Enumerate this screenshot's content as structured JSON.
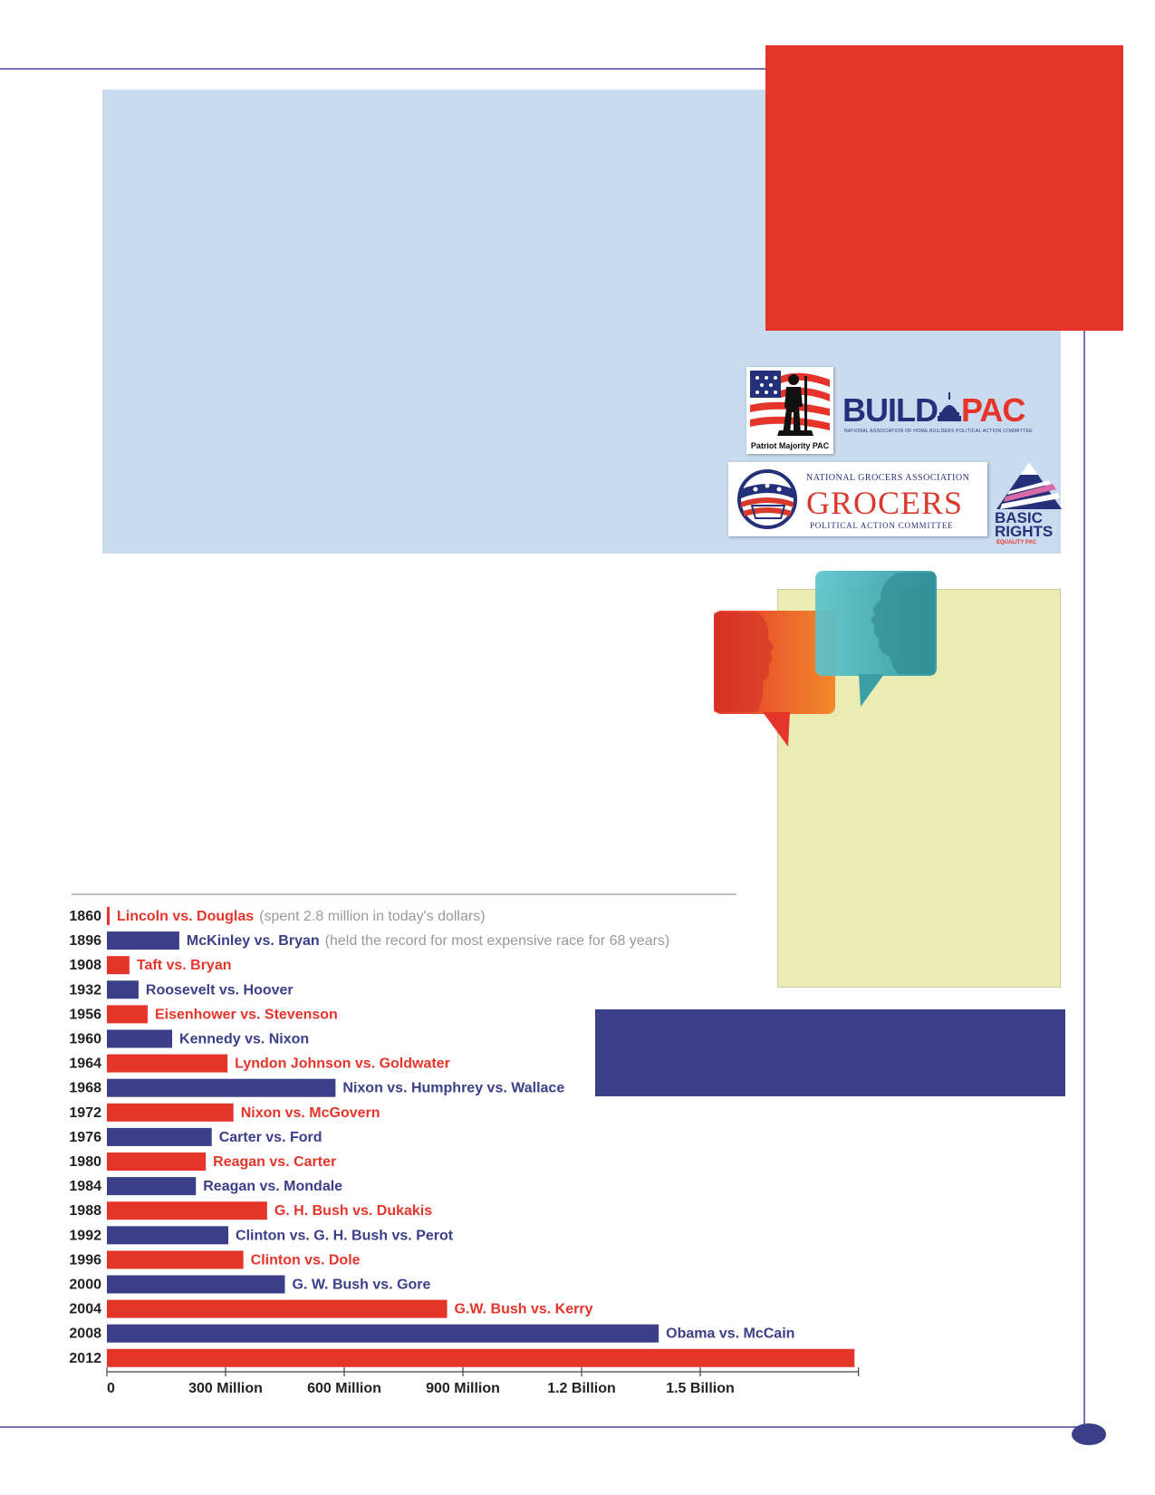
{
  "logos": {
    "patriot_majority": "Patriot Majority PAC",
    "build_pac": {
      "build": "BUILD",
      "pac": "PAC",
      "subtitle": "NATIONAL ASSOCIATION OF HOME BUILDERS POLITICAL ACTION COMMITTEE"
    },
    "grocers": {
      "top": "NATIONAL GROCERS ASSOCIATION",
      "main": "GROCERS",
      "bottom": "POLITICAL ACTION COMMITTEE"
    },
    "basic_rights": {
      "line1": "BASIC",
      "line2": "RIGHTS",
      "line3": "EQUALITY PAC"
    }
  },
  "colors": {
    "red": "#e5352b",
    "navy": "#3a3f88",
    "light_blue": "#c9dbee",
    "pale_yellow": "#ebebb4",
    "frame": "#7a70b8",
    "teal": "#3aaeb8",
    "orange": "#f07a2a",
    "note_gray": "#999999"
  },
  "chart_data": {
    "type": "bar",
    "orientation": "horizontal",
    "x_unit": "US dollars",
    "xlim": [
      0,
      1900000000
    ],
    "x_ticks": [
      {
        "value": 0,
        "label": "0"
      },
      {
        "value": 300000000,
        "label": "300 Million"
      },
      {
        "value": 600000000,
        "label": "600 Million"
      },
      {
        "value": 900000000,
        "label": "900 Million"
      },
      {
        "value": 1200000000,
        "label": "1.2 Billion"
      },
      {
        "value": 1500000000,
        "label": "1.5 Billion"
      }
    ],
    "categories": [
      "1860",
      "1896",
      "1908",
      "1932",
      "1956",
      "1960",
      "1964",
      "1968",
      "1972",
      "1976",
      "1980",
      "1984",
      "1988",
      "1992",
      "1996",
      "2000",
      "2004",
      "2008",
      "2012"
    ],
    "values": [
      2800000,
      183000000,
      57000000,
      80000000,
      103000000,
      165000000,
      305000000,
      578000000,
      320000000,
      265000000,
      250000000,
      225000000,
      405000000,
      307000000,
      345000000,
      450000000,
      860000000,
      1395000000,
      1890000000
    ],
    "race_labels": [
      "Lincoln vs. Douglas",
      "McKinley vs. Bryan",
      "Taft vs. Bryan",
      "Roosevelt vs. Hoover",
      "Eisenhower vs. Stevenson",
      "Kennedy vs. Nixon",
      "Lyndon Johnson vs. Goldwater",
      "Nixon vs. Humphrey vs. Wallace",
      "Nixon vs. McGovern",
      "Carter vs. Ford",
      "Reagan vs. Carter",
      "Reagan vs. Mondale",
      "G. H. Bush vs. Dukakis",
      "Clinton vs. G. H. Bush vs. Perot",
      "Clinton vs. Dole",
      "G. W. Bush vs. Gore",
      "G.W. Bush vs. Kerry",
      "Obama vs. McCain",
      ""
    ],
    "notes": [
      "(spent 2.8 million in today's dollars)",
      "(held the record for most expensive race for 68 years)",
      "",
      "",
      "",
      "",
      "",
      "",
      "",
      "",
      "",
      "",
      "",
      "",
      "",
      "",
      "",
      "",
      ""
    ],
    "bar_colors": [
      "#e5352b",
      "#3a3f88",
      "#e5352b",
      "#3a3f88",
      "#e5352b",
      "#3a3f88",
      "#e5352b",
      "#3a3f88",
      "#e5352b",
      "#3a3f88",
      "#e5352b",
      "#3a3f88",
      "#e5352b",
      "#3a3f88",
      "#e5352b",
      "#3a3f88",
      "#e5352b",
      "#3a3f88",
      "#e5352b"
    ],
    "grid": false
  }
}
